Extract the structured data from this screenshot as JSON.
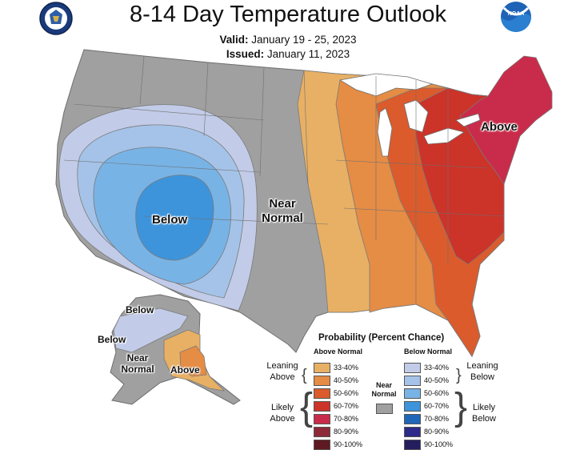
{
  "header": {
    "title": "8-14 Day Temperature Outlook",
    "valid_label": "Valid:",
    "valid_value": "January 19 - 25, 2023",
    "issued_label": "Issued:",
    "issued_value": "January 11, 2023"
  },
  "logos": {
    "left": "doc-seal-icon",
    "right": "noaa-logo-icon",
    "right_text": "NOAA"
  },
  "map_labels": {
    "conus_below": "Below",
    "conus_near_1": "Near",
    "conus_near_2": "Normal",
    "conus_above": "Above",
    "ak_below_1": "Below",
    "ak_below_2": "Below",
    "ak_near_1": "Near",
    "ak_near_2": "Normal",
    "ak_above": "Above"
  },
  "legend": {
    "title": "Probability (Percent Chance)",
    "above_header": "Above Normal",
    "below_header": "Below Normal",
    "near_label_1": "Near",
    "near_label_2": "Normal",
    "leaning_above_1": "Leaning",
    "leaning_above_2": "Above",
    "likely_above_1": "Likely",
    "likely_above_2": "Above",
    "leaning_below_1": "Leaning",
    "leaning_below_2": "Below",
    "likely_below_1": "Likely",
    "likely_below_2": "Below",
    "above_bins": [
      {
        "label": "33-40%",
        "color": "#E8B064"
      },
      {
        "label": "40-50%",
        "color": "#E58C45"
      },
      {
        "label": "50-60%",
        "color": "#DB5B2C"
      },
      {
        "label": "60-70%",
        "color": "#CC3329"
      },
      {
        "label": "70-80%",
        "color": "#C92C4A"
      },
      {
        "label": "80-90%",
        "color": "#8C2A3A"
      },
      {
        "label": "90-100%",
        "color": "#5E1A20"
      }
    ],
    "below_bins": [
      {
        "label": "33-40%",
        "color": "#C2CCE8"
      },
      {
        "label": "40-50%",
        "color": "#A5C3E8"
      },
      {
        "label": "50-60%",
        "color": "#78B3E6"
      },
      {
        "label": "60-70%",
        "color": "#3D94DB"
      },
      {
        "label": "70-80%",
        "color": "#1F66B8"
      },
      {
        "label": "80-90%",
        "color": "#2D2A8A"
      },
      {
        "label": "90-100%",
        "color": "#251E5E"
      }
    ],
    "near_color": "#A0A0A0"
  },
  "colors": {
    "near_normal": "#A0A0A0",
    "lake": "#ffffff",
    "state_line": "#6e6e6e"
  }
}
